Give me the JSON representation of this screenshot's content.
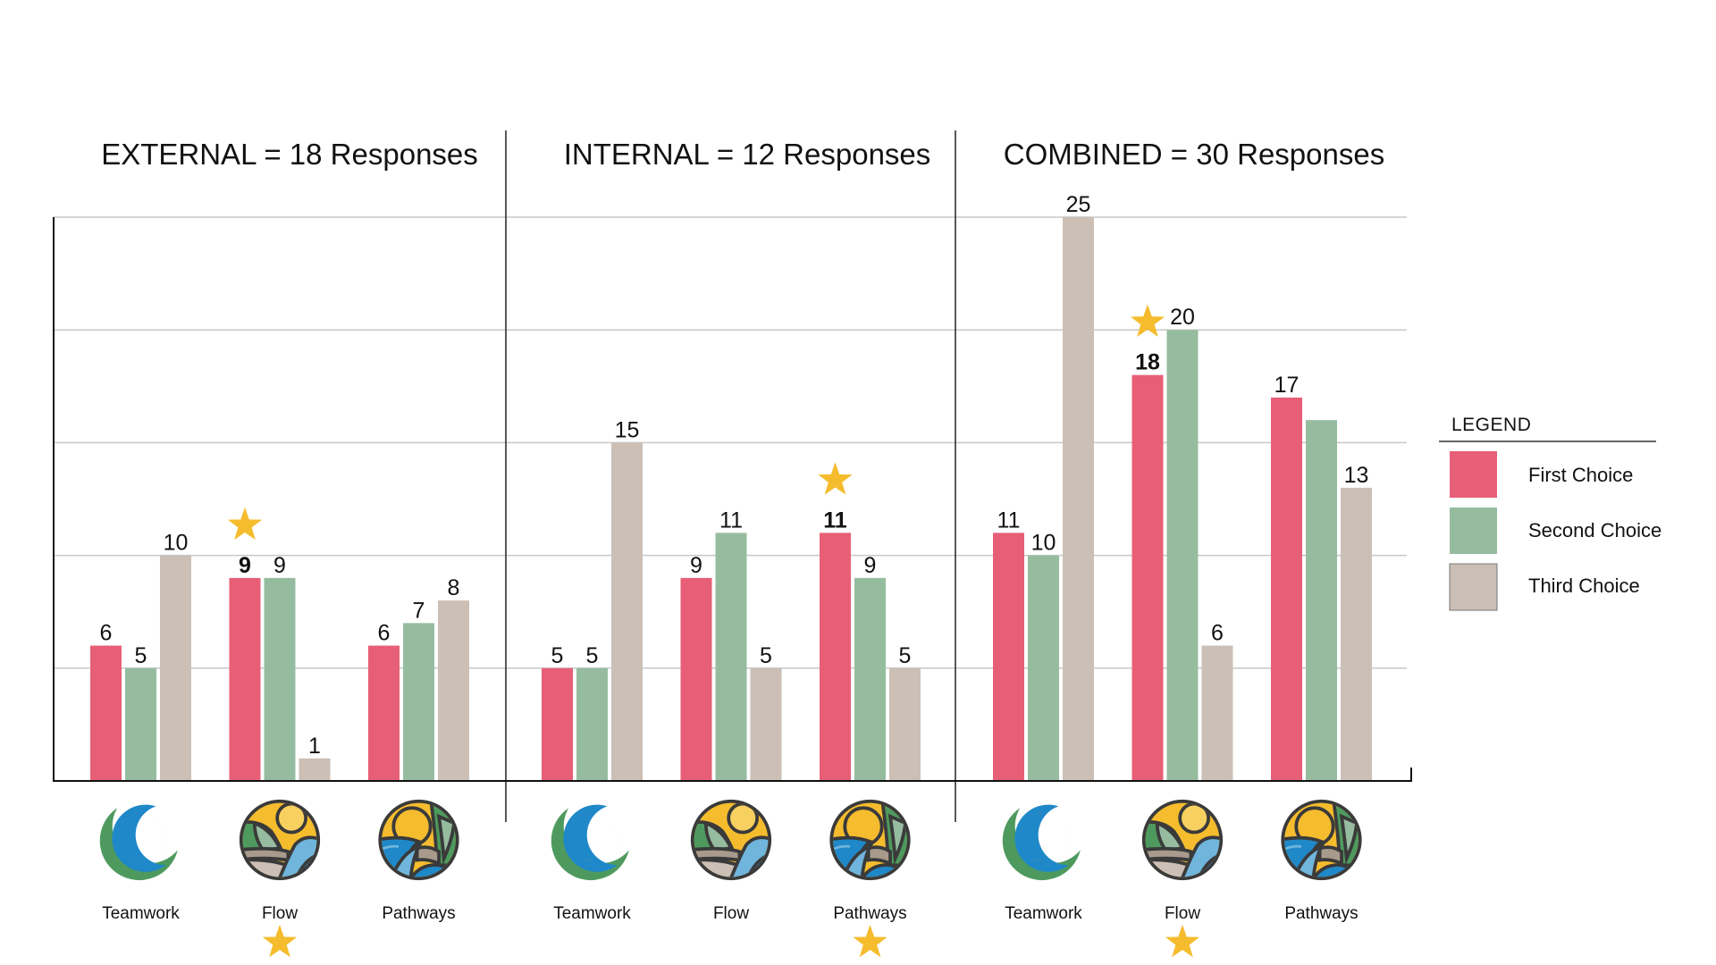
{
  "chart_data": {
    "type": "bar",
    "ylim": [
      0,
      25
    ],
    "grid": true,
    "gridline_step": 5,
    "xlabel": "",
    "ylabel": "",
    "legend": {
      "title": "LEGEND",
      "placement": "right",
      "entries": [
        {
          "name": "First Choice",
          "color": "#E75F76"
        },
        {
          "name": "Second Choice",
          "color": "#96BCA0"
        },
        {
          "name": "Third Choice",
          "color": "#CBBFB6"
        }
      ]
    },
    "panels": [
      {
        "title": "EXTERNAL = 18 Responses",
        "categories": [
          "Teamwork",
          "Flow",
          "Pathways"
        ],
        "series": [
          {
            "name": "First Choice",
            "values": [
              6,
              9,
              6
            ]
          },
          {
            "name": "Second Choice",
            "values": [
              5,
              9,
              7
            ]
          },
          {
            "name": "Third Choice",
            "values": [
              10,
              1,
              8
            ]
          }
        ],
        "value_labels_shown": [
          [
            true,
            true,
            true
          ],
          [
            true,
            true,
            true
          ],
          [
            true,
            true,
            true
          ]
        ],
        "winner": {
          "category": "Flow",
          "series": "First Choice"
        }
      },
      {
        "title": "INTERNAL = 12 Responses",
        "categories": [
          "Teamwork",
          "Flow",
          "Pathways"
        ],
        "series": [
          {
            "name": "First Choice",
            "values": [
              5,
              9,
              11
            ]
          },
          {
            "name": "Second Choice",
            "values": [
              5,
              11,
              9
            ]
          },
          {
            "name": "Third Choice",
            "values": [
              15,
              5,
              5
            ]
          }
        ],
        "value_labels_shown": [
          [
            true,
            true,
            true
          ],
          [
            true,
            true,
            true
          ],
          [
            true,
            true,
            true
          ]
        ],
        "winner": {
          "category": "Pathways",
          "series": "First Choice"
        }
      },
      {
        "title": "COMBINED = 30 Responses",
        "categories": [
          "Teamwork",
          "Flow",
          "Pathways"
        ],
        "series": [
          {
            "name": "First Choice",
            "values": [
              11,
              18,
              17
            ]
          },
          {
            "name": "Second Choice",
            "values": [
              10,
              20,
              16
            ]
          },
          {
            "name": "Third Choice",
            "values": [
              25,
              6,
              13
            ]
          }
        ],
        "value_labels_shown": [
          [
            true,
            true,
            true
          ],
          [
            true,
            true,
            true
          ],
          [
            true,
            false,
            true
          ]
        ],
        "winner": {
          "category": "Flow",
          "series": "First Choice"
        }
      }
    ],
    "category_icons": {
      "Teamwork": "teamwork-rings-icon",
      "Flow": "flow-landscape-icon",
      "Pathways": "pathways-landscape-icon"
    },
    "winner_marker": "star-icon",
    "star_color": "#F5BC2E"
  }
}
